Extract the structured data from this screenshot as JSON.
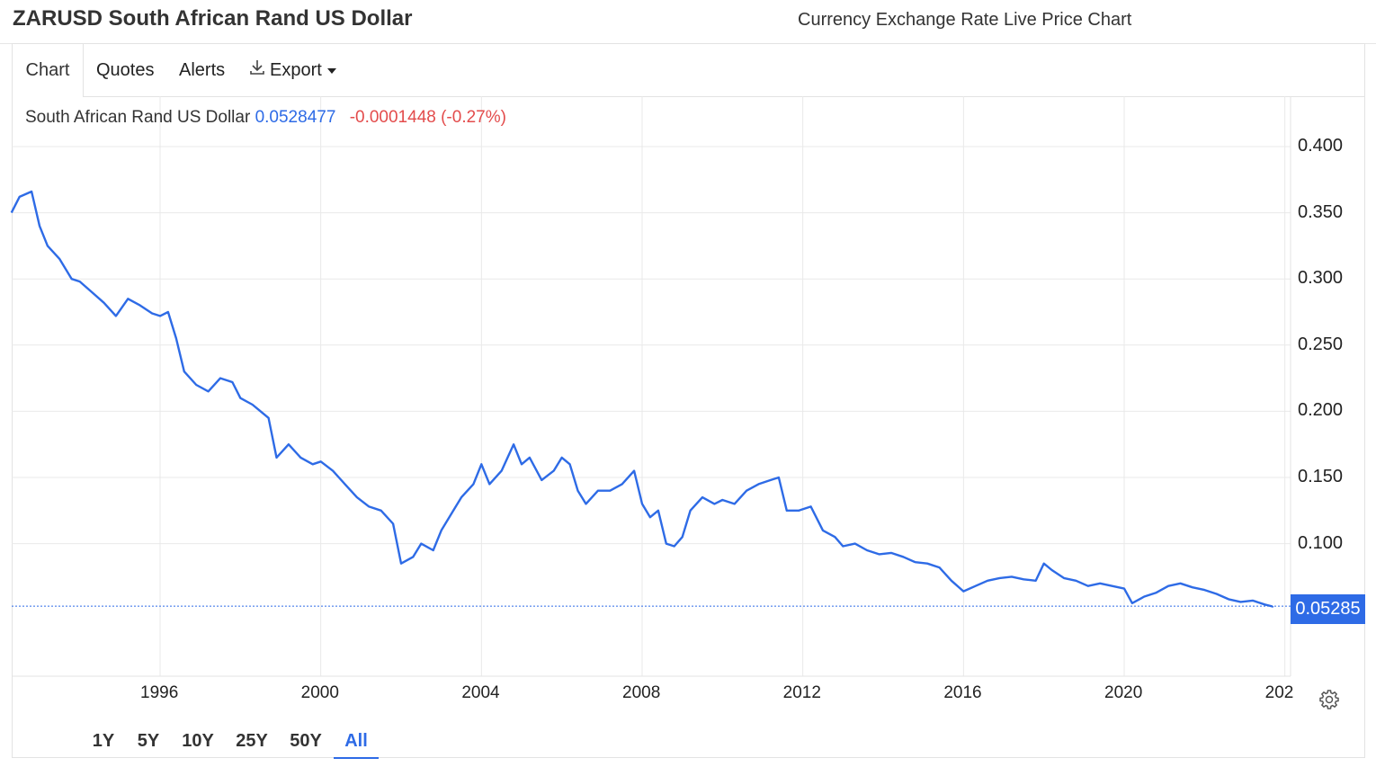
{
  "header": {
    "title": "ZARUSD South African Rand US Dollar",
    "subtitle": "Currency Exchange Rate Live Price Chart"
  },
  "tabs": [
    {
      "label": "Chart",
      "active": true
    },
    {
      "label": "Quotes",
      "active": false
    },
    {
      "label": "Alerts",
      "active": false
    },
    {
      "label": "Export",
      "icon": "download-icon",
      "active": false
    }
  ],
  "legend": {
    "name": "South African Rand US Dollar",
    "last": "0.0528477",
    "change": "-0.0001448 (-0.27%)"
  },
  "price_tag": "0.05285",
  "ranges": [
    {
      "label": "1Y",
      "active": false
    },
    {
      "label": "5Y",
      "active": false
    },
    {
      "label": "10Y",
      "active": false
    },
    {
      "label": "25Y",
      "active": false
    },
    {
      "label": "50Y",
      "active": false
    },
    {
      "label": "All",
      "active": true
    }
  ],
  "settings_icon": "gear-icon",
  "colors": {
    "series": "#2e6be6",
    "change_negative": "#e34c4c",
    "grid": "#e9e9e9"
  },
  "chart_data": {
    "type": "line",
    "title": "",
    "xlabel": "",
    "ylabel": "",
    "x_ticks": [
      "1996",
      "2000",
      "2004",
      "2008",
      "2012",
      "2016",
      "2020",
      "202"
    ],
    "y_ticks": [
      "0.400",
      "0.350",
      "0.300",
      "0.250",
      "0.200",
      "0.150",
      "0.100"
    ],
    "ylim": [
      0.0,
      0.42
    ],
    "xlim": [
      1992.3,
      2024.5
    ],
    "grid": true,
    "series": [
      {
        "name": "South African Rand US Dollar",
        "x": [
          1992.3,
          1992.5,
          1992.8,
          1993.0,
          1993.2,
          1993.5,
          1993.8,
          1994.0,
          1994.3,
          1994.6,
          1994.9,
          1995.2,
          1995.5,
          1995.8,
          1996.0,
          1996.2,
          1996.4,
          1996.6,
          1996.9,
          1997.2,
          1997.5,
          1997.8,
          1998.0,
          1998.3,
          1998.5,
          1998.7,
          1998.9,
          1999.2,
          1999.5,
          1999.8,
          2000.0,
          2000.3,
          2000.6,
          2000.9,
          2001.2,
          2001.5,
          2001.8,
          2002.0,
          2002.3,
          2002.5,
          2002.8,
          2003.0,
          2003.3,
          2003.5,
          2003.8,
          2004.0,
          2004.2,
          2004.5,
          2004.8,
          2005.0,
          2005.2,
          2005.5,
          2005.8,
          2006.0,
          2006.2,
          2006.4,
          2006.6,
          2006.9,
          2007.2,
          2007.5,
          2007.8,
          2008.0,
          2008.2,
          2008.4,
          2008.6,
          2008.8,
          2009.0,
          2009.2,
          2009.5,
          2009.8,
          2010.0,
          2010.3,
          2010.6,
          2010.9,
          2011.2,
          2011.4,
          2011.6,
          2011.9,
          2012.2,
          2012.5,
          2012.8,
          2013.0,
          2013.3,
          2013.6,
          2013.9,
          2014.2,
          2014.5,
          2014.8,
          2015.1,
          2015.4,
          2015.7,
          2016.0,
          2016.3,
          2016.6,
          2016.9,
          2017.2,
          2017.5,
          2017.8,
          2018.0,
          2018.2,
          2018.5,
          2018.8,
          2019.1,
          2019.4,
          2019.7,
          2020.0,
          2020.2,
          2020.5,
          2020.8,
          2021.1,
          2021.4,
          2021.7,
          2022.0,
          2022.3,
          2022.6,
          2022.9,
          2023.2,
          2023.5,
          2023.8,
          2024.0
        ],
        "y": [
          0.35,
          0.362,
          0.366,
          0.34,
          0.325,
          0.315,
          0.3,
          0.298,
          0.29,
          0.282,
          0.272,
          0.285,
          0.28,
          0.274,
          0.272,
          0.275,
          0.255,
          0.23,
          0.22,
          0.215,
          0.225,
          0.222,
          0.21,
          0.205,
          0.2,
          0.195,
          0.165,
          0.175,
          0.165,
          0.16,
          0.162,
          0.155,
          0.145,
          0.135,
          0.128,
          0.125,
          0.115,
          0.085,
          0.09,
          0.1,
          0.095,
          0.11,
          0.125,
          0.135,
          0.145,
          0.16,
          0.145,
          0.155,
          0.175,
          0.16,
          0.165,
          0.148,
          0.155,
          0.165,
          0.16,
          0.14,
          0.13,
          0.14,
          0.14,
          0.145,
          0.155,
          0.13,
          0.12,
          0.125,
          0.1,
          0.098,
          0.105,
          0.125,
          0.135,
          0.13,
          0.133,
          0.13,
          0.14,
          0.145,
          0.148,
          0.15,
          0.125,
          0.125,
          0.128,
          0.11,
          0.105,
          0.098,
          0.1,
          0.095,
          0.092,
          0.093,
          0.09,
          0.086,
          0.085,
          0.082,
          0.072,
          0.064,
          0.068,
          0.072,
          0.074,
          0.075,
          0.073,
          0.072,
          0.085,
          0.08,
          0.074,
          0.072,
          0.068,
          0.07,
          0.068,
          0.066,
          0.055,
          0.06,
          0.063,
          0.068,
          0.07,
          0.067,
          0.065,
          0.062,
          0.058,
          0.056,
          0.057,
          0.054,
          0.0525,
          0.0528
        ]
      }
    ]
  }
}
